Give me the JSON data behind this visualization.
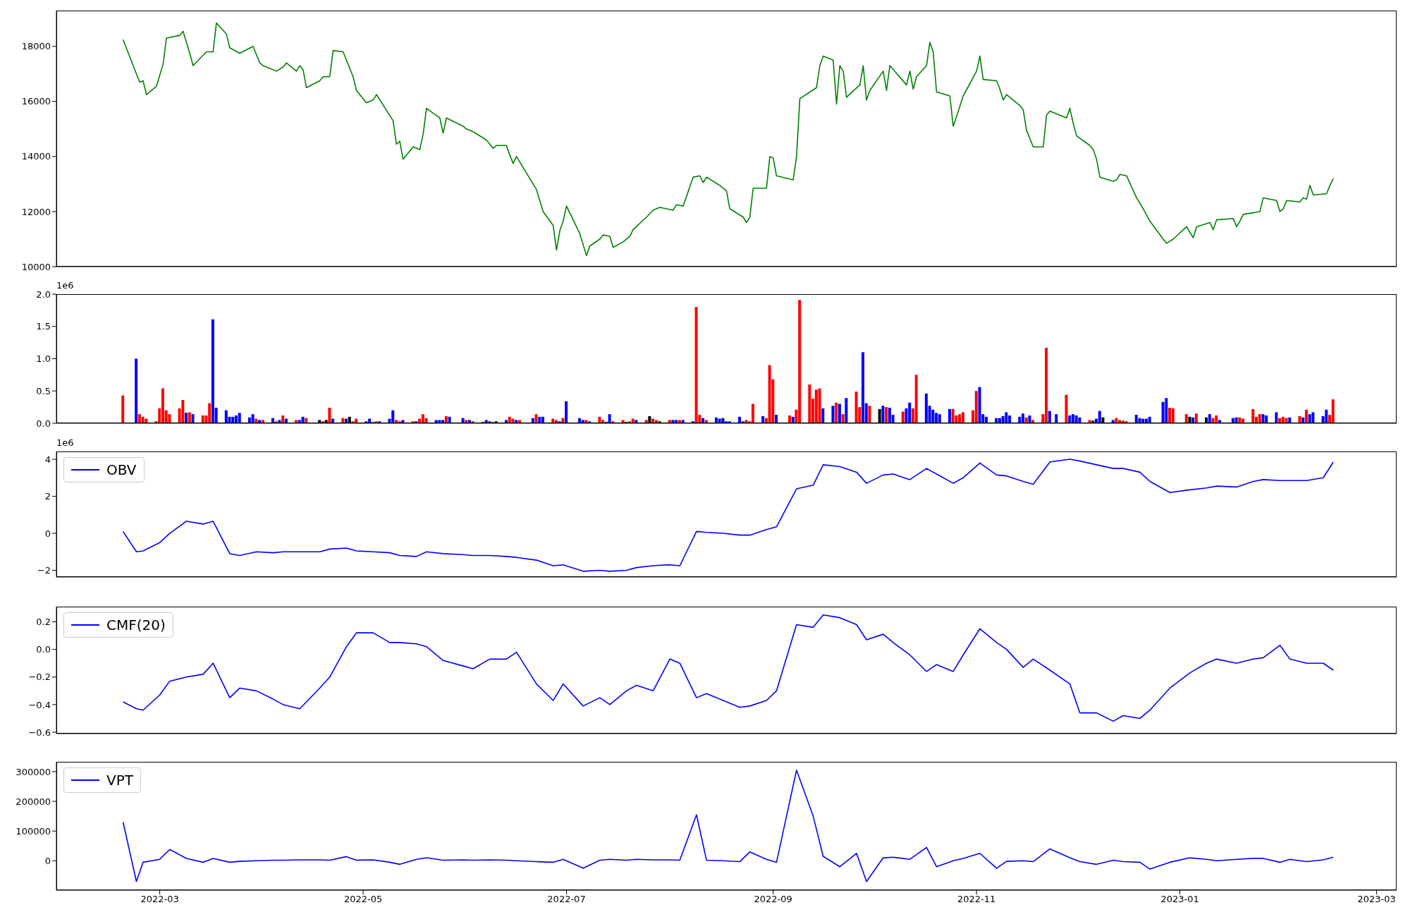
{
  "chart_data": [
    {
      "type": "line",
      "x": [
        "2022-02-18",
        "2022-02-22",
        "2022-02-23",
        "2022-02-24",
        "2022-02-25",
        "2022-02-28",
        "2022-03-02",
        "2022-03-03",
        "2022-03-07",
        "2022-03-08",
        "2022-03-10",
        "2022-03-11",
        "2022-03-15",
        "2022-03-17",
        "2022-03-18",
        "2022-03-21",
        "2022-03-22",
        "2022-03-25",
        "2022-03-29",
        "2022-03-31",
        "2022-04-01",
        "2022-04-05",
        "2022-04-07",
        "2022-04-08",
        "2022-04-11",
        "2022-04-12",
        "2022-04-13",
        "2022-04-14",
        "2022-04-18",
        "2022-04-19",
        "2022-04-21",
        "2022-04-22",
        "2022-04-25",
        "2022-04-26",
        "2022-04-28",
        "2022-04-29",
        "2022-05-02",
        "2022-05-04",
        "2022-05-05",
        "2022-05-10",
        "2022-05-11",
        "2022-05-12",
        "2022-05-13",
        "2022-05-16",
        "2022-05-18",
        "2022-05-19",
        "2022-05-20",
        "2022-05-24",
        "2022-05-25",
        "2022-05-26",
        "2022-05-31",
        "2022-06-01",
        "2022-06-03",
        "2022-06-07",
        "2022-06-09",
        "2022-06-10",
        "2022-06-13",
        "2022-06-14",
        "2022-06-15",
        "2022-06-16",
        "2022-06-17",
        "2022-06-22",
        "2022-06-24",
        "2022-06-27",
        "2022-06-28",
        "2022-06-29",
        "2022-06-30",
        "2022-07-01",
        "2022-07-05",
        "2022-07-07",
        "2022-07-08",
        "2022-07-11",
        "2022-07-12",
        "2022-07-14",
        "2022-07-15",
        "2022-07-18",
        "2022-07-20",
        "2022-07-21",
        "2022-07-25",
        "2022-07-27",
        "2022-07-29",
        "2022-08-02",
        "2022-08-03",
        "2022-08-05",
        "2022-08-08",
        "2022-08-10",
        "2022-08-11",
        "2022-08-12",
        "2022-08-16",
        "2022-08-18",
        "2022-08-19",
        "2022-08-23",
        "2022-08-24",
        "2022-08-25",
        "2022-08-26",
        "2022-08-30",
        "2022-08-31",
        "2022-09-01",
        "2022-09-02",
        "2022-09-07",
        "2022-09-08",
        "2022-09-09",
        "2022-09-14",
        "2022-09-15",
        "2022-09-16",
        "2022-09-19",
        "2022-09-20",
        "2022-09-21",
        "2022-09-22",
        "2022-09-23",
        "2022-09-27",
        "2022-09-28",
        "2022-09-29",
        "2022-09-30",
        "2022-10-04",
        "2022-10-05",
        "2022-10-06",
        "2022-10-11",
        "2022-10-12",
        "2022-10-13",
        "2022-10-14",
        "2022-10-17",
        "2022-10-18",
        "2022-10-19",
        "2022-10-20",
        "2022-10-24",
        "2022-10-25",
        "2022-10-26",
        "2022-10-28",
        "2022-11-01",
        "2022-11-02",
        "2022-11-03",
        "2022-11-07",
        "2022-11-08",
        "2022-11-09",
        "2022-11-10",
        "2022-11-14",
        "2022-11-15",
        "2022-11-16",
        "2022-11-18",
        "2022-11-21",
        "2022-11-22",
        "2022-11-23",
        "2022-11-28",
        "2022-11-29",
        "2022-11-30",
        "2022-12-01",
        "2022-12-05",
        "2022-12-06",
        "2022-12-07",
        "2022-12-08",
        "2022-12-12",
        "2022-12-13",
        "2022-12-14",
        "2022-12-16",
        "2022-12-19",
        "2022-12-21",
        "2022-12-23",
        "2022-12-27",
        "2022-12-28",
        "2022-12-30",
        "2023-01-03",
        "2023-01-05",
        "2023-01-06",
        "2023-01-10",
        "2023-01-11",
        "2023-01-12",
        "2023-01-17",
        "2023-01-18",
        "2023-01-19",
        "2023-01-20",
        "2023-01-25",
        "2023-01-26",
        "2023-01-30",
        "2023-01-31",
        "2023-02-01",
        "2023-02-02",
        "2023-02-06",
        "2023-02-07",
        "2023-02-08",
        "2023-02-09",
        "2023-02-10",
        "2023-02-14",
        "2023-02-15",
        "2023-02-16"
      ],
      "series": [
        {
          "color": "#008000",
          "values": [
            18250,
            17000,
            16700,
            16750,
            16250,
            16550,
            17350,
            18300,
            18400,
            18550,
            17750,
            17300,
            17800,
            17800,
            18850,
            18450,
            17950,
            17750,
            18000,
            17400,
            17300,
            17100,
            17250,
            17400,
            17100,
            17300,
            17150,
            16500,
            16750,
            16900,
            16900,
            17850,
            17800,
            17500,
            16900,
            16400,
            15950,
            16050,
            16250,
            15300,
            14450,
            14550,
            13900,
            14350,
            14250,
            14800,
            15750,
            15400,
            14850,
            15400,
            15100,
            15000,
            14900,
            14600,
            14300,
            14400,
            14400,
            14050,
            13750,
            14000,
            13800,
            12800,
            12000,
            11500,
            10600,
            11300,
            11650,
            12200,
            11200,
            10400,
            10750,
            11000,
            11150,
            11100,
            10700,
            10900,
            11100,
            11350,
            11800,
            12050,
            12150,
            12050,
            12250,
            12200,
            13250,
            13300,
            13050,
            13250,
            12950,
            12750,
            12100,
            11800,
            11600,
            11800,
            12850,
            12850,
            14000,
            13950,
            13300,
            13150,
            14000,
            16100,
            16500,
            17300,
            17650,
            17500,
            15900,
            17300,
            17100,
            16150,
            16600,
            17300,
            16050,
            16400,
            17100,
            16400,
            17300,
            16600,
            17100,
            16450,
            16900,
            17300,
            18150,
            17800,
            16350,
            16200,
            15100,
            15450,
            16200,
            17100,
            17650,
            16800,
            16750,
            16450,
            16050,
            16250,
            15850,
            15700,
            14950,
            14350,
            14350,
            15500,
            15650,
            15400,
            15750,
            15200,
            14750,
            14400,
            14250,
            13900,
            13250,
            13100,
            13150,
            13350,
            13300,
            12500,
            12100,
            11650,
            11000,
            10850,
            11000,
            11450,
            11050,
            11450,
            11600,
            11350,
            11700,
            11750,
            11450,
            11650,
            11900,
            12000,
            12500,
            12400,
            12000,
            12100,
            12400,
            12350,
            12500,
            12450,
            12950,
            12600,
            12650,
            12950,
            13200
          ]
        }
      ],
      "xlim": [
        "2022-01-29",
        "2023-03-07"
      ],
      "ylim": [
        10000,
        19300
      ],
      "yticks": [
        10000,
        12000,
        14000,
        16000,
        18000
      ],
      "tick_labels": "y"
    },
    {
      "type": "bar",
      "x": [
        "2022-02-18",
        "2022-02-22",
        "2022-02-23",
        "2022-02-24",
        "2022-02-25",
        "2022-02-28",
        "2022-03-01",
        "2022-03-02",
        "2022-03-03",
        "2022-03-04",
        "2022-03-07",
        "2022-03-08",
        "2022-03-09",
        "2022-03-10",
        "2022-03-11",
        "2022-03-14",
        "2022-03-15",
        "2022-03-16",
        "2022-03-17",
        "2022-03-18",
        "2022-03-21",
        "2022-03-22",
        "2022-03-23",
        "2022-03-24",
        "2022-03-25",
        "2022-03-28",
        "2022-03-29",
        "2022-03-30",
        "2022-03-31",
        "2022-04-01",
        "2022-04-04",
        "2022-04-05",
        "2022-04-06",
        "2022-04-07",
        "2022-04-08",
        "2022-04-11",
        "2022-04-12",
        "2022-04-13",
        "2022-04-14",
        "2022-04-18",
        "2022-04-19",
        "2022-04-20",
        "2022-04-21",
        "2022-04-22",
        "2022-04-25",
        "2022-04-26",
        "2022-04-27",
        "2022-04-28",
        "2022-04-29",
        "2022-05-02",
        "2022-05-03",
        "2022-05-04",
        "2022-05-05",
        "2022-05-06",
        "2022-05-09",
        "2022-05-10",
        "2022-05-11",
        "2022-05-12",
        "2022-05-13",
        "2022-05-16",
        "2022-05-17",
        "2022-05-18",
        "2022-05-19",
        "2022-05-20",
        "2022-05-23",
        "2022-05-24",
        "2022-05-25",
        "2022-05-26",
        "2022-05-27",
        "2022-05-31",
        "2022-06-01",
        "2022-06-02",
        "2022-06-03",
        "2022-06-06",
        "2022-06-07",
        "2022-06-08",
        "2022-06-09",
        "2022-06-10",
        "2022-06-13",
        "2022-06-14",
        "2022-06-15",
        "2022-06-16",
        "2022-06-17",
        "2022-06-21",
        "2022-06-22",
        "2022-06-23",
        "2022-06-24",
        "2022-06-27",
        "2022-06-28",
        "2022-06-29",
        "2022-06-30",
        "2022-07-01",
        "2022-07-05",
        "2022-07-06",
        "2022-07-07",
        "2022-07-08",
        "2022-07-11",
        "2022-07-12",
        "2022-07-13",
        "2022-07-14",
        "2022-07-15",
        "2022-07-18",
        "2022-07-19",
        "2022-07-20",
        "2022-07-21",
        "2022-07-22",
        "2022-07-25",
        "2022-07-26",
        "2022-07-27",
        "2022-07-28",
        "2022-07-29",
        "2022-08-01",
        "2022-08-02",
        "2022-08-03",
        "2022-08-04",
        "2022-08-05",
        "2022-08-08",
        "2022-08-09",
        "2022-08-10",
        "2022-08-11",
        "2022-08-12",
        "2022-08-15",
        "2022-08-16",
        "2022-08-17",
        "2022-08-18",
        "2022-08-19",
        "2022-08-22",
        "2022-08-23",
        "2022-08-24",
        "2022-08-25",
        "2022-08-26",
        "2022-08-29",
        "2022-08-30",
        "2022-08-31",
        "2022-09-01",
        "2022-09-02",
        "2022-09-06",
        "2022-09-07",
        "2022-09-08",
        "2022-09-09",
        "2022-09-12",
        "2022-09-13",
        "2022-09-14",
        "2022-09-15",
        "2022-09-16",
        "2022-09-19",
        "2022-09-20",
        "2022-09-21",
        "2022-09-22",
        "2022-09-23",
        "2022-09-26",
        "2022-09-27",
        "2022-09-28",
        "2022-09-29",
        "2022-09-30",
        "2022-10-03",
        "2022-10-04",
        "2022-10-05",
        "2022-10-06",
        "2022-10-07",
        "2022-10-10",
        "2022-10-11",
        "2022-10-12",
        "2022-10-13",
        "2022-10-14",
        "2022-10-17",
        "2022-10-18",
        "2022-10-19",
        "2022-10-20",
        "2022-10-21",
        "2022-10-24",
        "2022-10-25",
        "2022-10-26",
        "2022-10-27",
        "2022-10-28",
        "2022-10-31",
        "2022-11-01",
        "2022-11-02",
        "2022-11-03",
        "2022-11-04",
        "2022-11-07",
        "2022-11-08",
        "2022-11-09",
        "2022-11-10",
        "2022-11-11",
        "2022-11-14",
        "2022-11-15",
        "2022-11-16",
        "2022-11-17",
        "2022-11-18",
        "2022-11-21",
        "2022-11-22",
        "2022-11-23",
        "2022-11-25",
        "2022-11-28",
        "2022-11-29",
        "2022-11-30",
        "2022-12-01",
        "2022-12-02",
        "2022-12-05",
        "2022-12-06",
        "2022-12-07",
        "2022-12-08",
        "2022-12-09",
        "2022-12-12",
        "2022-12-13",
        "2022-12-14",
        "2022-12-15",
        "2022-12-16",
        "2022-12-19",
        "2022-12-20",
        "2022-12-21",
        "2022-12-22",
        "2022-12-23",
        "2022-12-27",
        "2022-12-28",
        "2022-12-29",
        "2022-12-30",
        "2023-01-03",
        "2023-01-04",
        "2023-01-05",
        "2023-01-06",
        "2023-01-09",
        "2023-01-10",
        "2023-01-11",
        "2023-01-12",
        "2023-01-13",
        "2023-01-17",
        "2023-01-18",
        "2023-01-19",
        "2023-01-20",
        "2023-01-23",
        "2023-01-24",
        "2023-01-25",
        "2023-01-26",
        "2023-01-27",
        "2023-01-30",
        "2023-01-31",
        "2023-02-01",
        "2023-02-02",
        "2023-02-03",
        "2023-02-06",
        "2023-02-07",
        "2023-02-08",
        "2023-02-09",
        "2023-02-10",
        "2023-02-13",
        "2023-02-14",
        "2023-02-15",
        "2023-02-16"
      ],
      "values": [
        0.43,
        1.0,
        0.14,
        0.1,
        0.07,
        0.03,
        0.23,
        0.54,
        0.2,
        0.14,
        0.23,
        0.36,
        0.16,
        0.17,
        0.14,
        0.12,
        0.12,
        0.31,
        1.61,
        0.24,
        0.2,
        0.1,
        0.1,
        0.12,
        0.16,
        0.09,
        0.14,
        0.07,
        0.05,
        0.05,
        0.08,
        0.03,
        0.05,
        0.12,
        0.07,
        0.05,
        0.05,
        0.1,
        0.08,
        0.05,
        0.03,
        0.05,
        0.24,
        0.07,
        0.08,
        0.07,
        0.1,
        0.03,
        0.07,
        0.03,
        0.07,
        0.02,
        0.03,
        0.03,
        0.07,
        0.2,
        0.05,
        0.03,
        0.05,
        0.03,
        0.03,
        0.07,
        0.14,
        0.08,
        0.05,
        0.05,
        0.05,
        0.11,
        0.1,
        0.08,
        0.05,
        0.05,
        0.03,
        0.02,
        0.05,
        0.03,
        0.02,
        0.03,
        0.05,
        0.1,
        0.07,
        0.05,
        0.05,
        0.08,
        0.14,
        0.1,
        0.1,
        0.07,
        0.05,
        0.03,
        0.08,
        0.34,
        0.08,
        0.05,
        0.05,
        0.03,
        0.1,
        0.05,
        0.02,
        0.14,
        0.03,
        0.05,
        0.02,
        0.03,
        0.07,
        0.05,
        0.05,
        0.11,
        0.07,
        0.05,
        0.03,
        0.05,
        0.05,
        0.05,
        0.05,
        0.05,
        0.03,
        1.8,
        0.13,
        0.08,
        0.05,
        0.09,
        0.07,
        0.08,
        0.03,
        0.03,
        0.1,
        0.03,
        0.05,
        0.03,
        0.3,
        0.11,
        0.08,
        0.9,
        0.68,
        0.13,
        0.12,
        0.1,
        0.21,
        1.91,
        0.6,
        0.38,
        0.52,
        0.54,
        0.23,
        0.27,
        0.32,
        0.3,
        0.14,
        0.39,
        0.49,
        0.25,
        1.1,
        0.31,
        0.27,
        0.22,
        0.27,
        0.25,
        0.24,
        0.13,
        0.18,
        0.23,
        0.32,
        0.23,
        0.75,
        0.46,
        0.27,
        0.21,
        0.16,
        0.14,
        0.22,
        0.22,
        0.12,
        0.14,
        0.17,
        0.2,
        0.5,
        0.56,
        0.14,
        0.1,
        0.08,
        0.08,
        0.11,
        0.17,
        0.12,
        0.1,
        0.15,
        0.09,
        0.12,
        0.05,
        0.14,
        1.17,
        0.19,
        0.14,
        0.44,
        0.12,
        0.14,
        0.12,
        0.09,
        0.05,
        0.04,
        0.07,
        0.19,
        0.09,
        0.05,
        0.08,
        0.05,
        0.04,
        0.03,
        0.13,
        0.08,
        0.07,
        0.07,
        0.1,
        0.33,
        0.39,
        0.24,
        0.23,
        0.14,
        0.1,
        0.09,
        0.15,
        0.09,
        0.14,
        0.08,
        0.12,
        0.05,
        0.08,
        0.09,
        0.09,
        0.07,
        0.22,
        0.1,
        0.14,
        0.14,
        0.12,
        0.17,
        0.08,
        0.1,
        0.08,
        0.09,
        0.11,
        0.09,
        0.21,
        0.14,
        0.17,
        0.11,
        0.21,
        0.13,
        0.37
      ],
      "colors": [
        "#ff0000",
        "#0000ff",
        "#ff0000",
        "#ff0000",
        "#ff0000",
        "#ff0000",
        "#ff0000",
        "#ff0000",
        "#ff0000",
        "#ff0000",
        "#ff0000",
        "#ff0000",
        "#0000ff",
        "#ff0000",
        "#0000ff",
        "#ff0000",
        "#ff0000",
        "#ff0000",
        "#0000ff",
        "#0000ff",
        "#0000ff",
        "#0000ff",
        "#0000ff",
        "#0000ff",
        "#0000ff",
        "#0000ff",
        "#0000ff",
        "#ff0000",
        "#0000ff",
        "#ff0000",
        "#0000ff",
        "#ff0000",
        "#0000ff",
        "#ff0000",
        "#0000ff",
        "#ff0000",
        "#0000ff",
        "#0000ff",
        "#ff0000",
        "#000000",
        "#ff0000",
        "#000000",
        "#ff0000",
        "#0000ff",
        "#ff0000",
        "#0000ff",
        "#000000",
        "#ff0000",
        "#ff0000",
        "#0000ff",
        "#0000ff",
        "#ff0000",
        "#ff0000",
        "#0000ff",
        "#0000ff",
        "#0000ff",
        "#ff0000",
        "#ff0000",
        "#0000ff",
        "#ff0000",
        "#0000ff",
        "#ff0000",
        "#ff0000",
        "#ff0000",
        "#0000ff",
        "#0000ff",
        "#0000ff",
        "#ff0000",
        "#0000ff",
        "#0000ff",
        "#ff0000",
        "#0000ff",
        "#ff0000",
        "#0000ff",
        "#0000ff",
        "#0000ff",
        "#ff0000",
        "#000000",
        "#0000ff",
        "#ff0000",
        "#ff0000",
        "#0000ff",
        "#ff0000",
        "#0000ff",
        "#ff0000",
        "#0000ff",
        "#0000ff",
        "#ff0000",
        "#ff0000",
        "#0000ff",
        "#ff0000",
        "#0000ff",
        "#0000ff",
        "#0000ff",
        "#ff0000",
        "#0000ff",
        "#ff0000",
        "#ff0000",
        "#000000",
        "#0000ff",
        "#ff0000",
        "#ff0000",
        "#000000",
        "#ff0000",
        "#ff0000",
        "#0000ff",
        "#ff0000",
        "#000000",
        "#ff0000",
        "#ff0000",
        "#000000",
        "#ff0000",
        "#0000ff",
        "#0000ff",
        "#ff0000",
        "#0000ff",
        "#0000ff",
        "#ff0000",
        "#ff0000",
        "#0000ff",
        "#ff0000",
        "#0000ff",
        "#0000ff",
        "#0000ff",
        "#0000ff",
        "#0000ff",
        "#0000ff",
        "#0000ff",
        "#ff0000",
        "#ff0000",
        "#ff0000",
        "#0000ff",
        "#ff0000",
        "#ff0000",
        "#ff0000",
        "#0000ff",
        "#ff0000",
        "#0000ff",
        "#ff0000",
        "#ff0000",
        "#ff0000",
        "#ff0000",
        "#ff0000",
        "#ff0000",
        "#0000ff",
        "#0000ff",
        "#ff0000",
        "#0000ff",
        "#ff0000",
        "#0000ff",
        "#ff0000",
        "#ff0000",
        "#0000ff",
        "#0000ff",
        "#ff0000",
        "#000000",
        "#0000ff",
        "#ff0000",
        "#0000ff",
        "#0000ff",
        "#ff0000",
        "#0000ff",
        "#0000ff",
        "#ff0000",
        "#ff0000",
        "#0000ff",
        "#0000ff",
        "#0000ff",
        "#0000ff",
        "#0000ff",
        "#0000ff",
        "#ff0000",
        "#ff0000",
        "#ff0000",
        "#ff0000",
        "#ff0000",
        "#ff0000",
        "#0000ff",
        "#0000ff",
        "#0000ff",
        "#0000ff",
        "#0000ff",
        "#0000ff",
        "#0000ff",
        "#0000ff",
        "#0000ff",
        "#0000ff",
        "#ff0000",
        "#0000ff",
        "#ff0000",
        "#ff0000",
        "#ff0000",
        "#0000ff",
        "#0000ff",
        "#ff0000",
        "#0000ff",
        "#0000ff",
        "#0000ff",
        "#0000ff",
        "#ff0000",
        "#000000",
        "#0000ff",
        "#0000ff",
        "#000000",
        "#0000ff",
        "#ff0000",
        "#ff0000",
        "#ff0000",
        "#ff0000",
        "#0000ff",
        "#0000ff",
        "#0000ff",
        "#0000ff",
        "#0000ff",
        "#0000ff",
        "#0000ff",
        "#ff0000",
        "#ff0000",
        "#ff0000",
        "#000000",
        "#0000ff",
        "#ff0000",
        "#000000",
        "#0000ff",
        "#ff0000",
        "#ff0000",
        "#0000ff",
        "#0000ff",
        "#0000ff",
        "#ff0000",
        "#ff0000",
        "#ff0000",
        "#ff0000",
        "#ff0000",
        "#0000ff",
        "#0000ff",
        "#0000ff",
        "#ff0000",
        "#ff0000",
        "#ff0000",
        "#0000ff",
        "#ff0000",
        "#0000ff",
        "#ff0000",
        "#0000ff",
        "#0000ff",
        "#0000ff",
        "#0000ff",
        "#ff0000",
        "#ff0000"
      ],
      "xlim": [
        "2022-01-29",
        "2023-03-07"
      ],
      "ylim": [
        0,
        2.0
      ],
      "yticks": [
        {
          "value": 0,
          "label": "0.0"
        },
        {
          "value": 0.5,
          "label": "0.5"
        },
        {
          "value": 1,
          "label": "1.0"
        },
        {
          "value": 1.5,
          "label": "1.5"
        },
        {
          "value": 2,
          "label": "2.0"
        }
      ],
      "annotations": [
        "1e6"
      ],
      "tick_labels": "y"
    },
    {
      "type": "line",
      "x": [
        "2022-02-18",
        "2022-02-22",
        "2022-02-24",
        "2022-03-01",
        "2022-03-04",
        "2022-03-09",
        "2022-03-14",
        "2022-03-17",
        "2022-03-22",
        "2022-03-25",
        "2022-03-30",
        "2022-04-04",
        "2022-04-07",
        "2022-04-12",
        "2022-04-18",
        "2022-04-21",
        "2022-04-26",
        "2022-04-29",
        "2022-05-04",
        "2022-05-09",
        "2022-05-12",
        "2022-05-17",
        "2022-05-20",
        "2022-05-25",
        "2022-05-31",
        "2022-06-03",
        "2022-06-08",
        "2022-06-13",
        "2022-06-16",
        "2022-06-22",
        "2022-06-27",
        "2022-06-30",
        "2022-07-06",
        "2022-07-11",
        "2022-07-14",
        "2022-07-19",
        "2022-07-22",
        "2022-07-27",
        "2022-08-01",
        "2022-08-04",
        "2022-08-09",
        "2022-08-12",
        "2022-08-17",
        "2022-08-22",
        "2022-08-25",
        "2022-08-30",
        "2022-09-02",
        "2022-09-08",
        "2022-09-13",
        "2022-09-16",
        "2022-09-21",
        "2022-09-26",
        "2022-09-29",
        "2022-10-04",
        "2022-10-07",
        "2022-10-12",
        "2022-10-17",
        "2022-10-20",
        "2022-10-25",
        "2022-10-28",
        "2022-11-02",
        "2022-11-07",
        "2022-11-10",
        "2022-11-15",
        "2022-11-18",
        "2022-11-23",
        "2022-11-29",
        "2022-12-02",
        "2022-12-07",
        "2022-12-12",
        "2022-12-15",
        "2022-12-20",
        "2022-12-23",
        "2022-12-29",
        "2023-01-04",
        "2023-01-09",
        "2023-01-12",
        "2023-01-18",
        "2023-01-23",
        "2023-01-26",
        "2023-01-31",
        "2023-02-03",
        "2023-02-08",
        "2023-02-13",
        "2023-02-16"
      ],
      "series": [
        {
          "name": "OBV",
          "color": "#0000ff",
          "values": [
            0.1,
            -1.0,
            -0.95,
            -0.5,
            0.0,
            0.65,
            0.5,
            0.65,
            -1.1,
            -1.2,
            -1.0,
            -1.05,
            -1.0,
            -1.0,
            -1.0,
            -0.85,
            -0.8,
            -0.95,
            -1.0,
            -1.05,
            -1.2,
            -1.25,
            -1.0,
            -1.1,
            -1.15,
            -1.2,
            -1.2,
            -1.25,
            -1.3,
            -1.45,
            -1.75,
            -1.7,
            -2.05,
            -2.0,
            -2.05,
            -2.0,
            -1.85,
            -1.75,
            -1.7,
            -1.75,
            0.1,
            0.05,
            0.0,
            -0.1,
            -0.1,
            0.2,
            0.35,
            2.4,
            2.6,
            3.7,
            3.6,
            3.3,
            2.7,
            3.15,
            3.2,
            2.9,
            3.5,
            3.2,
            2.7,
            3.0,
            3.8,
            3.15,
            3.1,
            2.8,
            2.65,
            3.85,
            4.0,
            3.9,
            3.7,
            3.5,
            3.5,
            3.3,
            2.8,
            2.2,
            2.35,
            2.45,
            2.55,
            2.5,
            2.8,
            2.9,
            2.85,
            2.85,
            2.85,
            3.0,
            3.85
          ]
        }
      ],
      "xlim": [
        "2022-01-29",
        "2023-03-07"
      ],
      "ylim": [
        -2.36,
        4.42
      ],
      "yticks": [
        {
          "value": -2,
          "label": "−2"
        },
        0,
        2,
        4
      ],
      "legend": "top left",
      "annotations": [
        "1e6"
      ],
      "tick_labels": "y"
    },
    {
      "type": "line",
      "x": [
        "2022-02-18",
        "2022-02-22",
        "2022-02-24",
        "2022-03-01",
        "2022-03-04",
        "2022-03-09",
        "2022-03-14",
        "2022-03-17",
        "2022-03-22",
        "2022-03-25",
        "2022-03-30",
        "2022-04-04",
        "2022-04-07",
        "2022-04-12",
        "2022-04-18",
        "2022-04-21",
        "2022-04-26",
        "2022-04-29",
        "2022-05-04",
        "2022-05-09",
        "2022-05-12",
        "2022-05-17",
        "2022-05-20",
        "2022-05-25",
        "2022-05-31",
        "2022-06-03",
        "2022-06-08",
        "2022-06-13",
        "2022-06-16",
        "2022-06-22",
        "2022-06-27",
        "2022-06-30",
        "2022-07-06",
        "2022-07-11",
        "2022-07-14",
        "2022-07-19",
        "2022-07-22",
        "2022-07-27",
        "2022-08-01",
        "2022-08-04",
        "2022-08-09",
        "2022-08-12",
        "2022-08-17",
        "2022-08-22",
        "2022-08-25",
        "2022-08-30",
        "2022-09-02",
        "2022-09-08",
        "2022-09-13",
        "2022-09-16",
        "2022-09-21",
        "2022-09-26",
        "2022-09-29",
        "2022-10-04",
        "2022-10-07",
        "2022-10-12",
        "2022-10-17",
        "2022-10-20",
        "2022-10-25",
        "2022-10-28",
        "2022-11-02",
        "2022-11-07",
        "2022-11-10",
        "2022-11-15",
        "2022-11-18",
        "2022-11-23",
        "2022-11-29",
        "2022-12-02",
        "2022-12-07",
        "2022-12-12",
        "2022-12-15",
        "2022-12-20",
        "2022-12-23",
        "2022-12-29",
        "2023-01-04",
        "2023-01-09",
        "2023-01-12",
        "2023-01-18",
        "2023-01-23",
        "2023-01-26",
        "2023-01-31",
        "2023-02-03",
        "2023-02-08",
        "2023-02-13",
        "2023-02-16"
      ],
      "series": [
        {
          "name": "CMF(20)",
          "color": "#0000ff",
          "values": [
            -0.38,
            -0.43,
            -0.44,
            -0.33,
            -0.23,
            -0.2,
            -0.18,
            -0.1,
            -0.35,
            -0.28,
            -0.3,
            -0.36,
            -0.4,
            -0.43,
            -0.28,
            -0.2,
            0.02,
            0.12,
            0.12,
            0.05,
            0.05,
            0.04,
            0.02,
            -0.08,
            -0.12,
            -0.14,
            -0.07,
            -0.07,
            -0.02,
            -0.25,
            -0.37,
            -0.25,
            -0.41,
            -0.35,
            -0.4,
            -0.3,
            -0.26,
            -0.3,
            -0.07,
            -0.1,
            -0.35,
            -0.32,
            -0.37,
            -0.42,
            -0.41,
            -0.37,
            -0.3,
            0.18,
            0.16,
            0.25,
            0.23,
            0.18,
            0.07,
            0.11,
            0.05,
            -0.04,
            -0.16,
            -0.11,
            -0.16,
            -0.04,
            0.15,
            0.05,
            0.0,
            -0.13,
            -0.07,
            -0.15,
            -0.25,
            -0.46,
            -0.46,
            -0.52,
            -0.48,
            -0.5,
            -0.44,
            -0.28,
            -0.17,
            -0.1,
            -0.07,
            -0.1,
            -0.07,
            -0.06,
            0.03,
            -0.07,
            -0.1,
            -0.1,
            -0.15
          ]
        }
      ],
      "xlim": [
        "2022-01-29",
        "2023-03-07"
      ],
      "ylim": [
        -0.61,
        0.31
      ],
      "yticks": [
        {
          "value": -0.6,
          "label": "−0.6"
        },
        {
          "value": -0.4,
          "label": "−0.4"
        },
        {
          "value": -0.2,
          "label": "−0.2"
        },
        {
          "value": 0,
          "label": "0.0"
        },
        0.2
      ],
      "legend": "top left",
      "tick_labels": "y"
    },
    {
      "type": "line",
      "x": [
        "2022-02-18",
        "2022-02-22",
        "2022-02-24",
        "2022-03-01",
        "2022-03-04",
        "2022-03-09",
        "2022-03-14",
        "2022-03-17",
        "2022-03-22",
        "2022-03-25",
        "2022-03-30",
        "2022-04-04",
        "2022-04-07",
        "2022-04-12",
        "2022-04-18",
        "2022-04-21",
        "2022-04-26",
        "2022-04-29",
        "2022-05-04",
        "2022-05-09",
        "2022-05-12",
        "2022-05-17",
        "2022-05-20",
        "2022-05-25",
        "2022-05-31",
        "2022-06-03",
        "2022-06-08",
        "2022-06-13",
        "2022-06-16",
        "2022-06-22",
        "2022-06-27",
        "2022-06-30",
        "2022-07-06",
        "2022-07-11",
        "2022-07-14",
        "2022-07-19",
        "2022-07-22",
        "2022-07-27",
        "2022-08-01",
        "2022-08-04",
        "2022-08-09",
        "2022-08-12",
        "2022-08-17",
        "2022-08-22",
        "2022-08-25",
        "2022-08-30",
        "2022-09-02",
        "2022-09-08",
        "2022-09-13",
        "2022-09-16",
        "2022-09-21",
        "2022-09-26",
        "2022-09-29",
        "2022-10-04",
        "2022-10-07",
        "2022-10-12",
        "2022-10-17",
        "2022-10-20",
        "2022-10-25",
        "2022-10-28",
        "2022-11-02",
        "2022-11-07",
        "2022-11-10",
        "2022-11-15",
        "2022-11-18",
        "2022-11-23",
        "2022-11-29",
        "2022-12-02",
        "2022-12-07",
        "2022-12-12",
        "2022-12-15",
        "2022-12-20",
        "2022-12-23",
        "2022-12-29",
        "2023-01-04",
        "2023-01-09",
        "2023-01-12",
        "2023-01-18",
        "2023-01-23",
        "2023-01-26",
        "2023-01-31",
        "2023-02-03",
        "2023-02-08",
        "2023-02-13",
        "2023-02-16"
      ],
      "series": [
        {
          "name": "VPT",
          "color": "#0000ff",
          "values": [
            130000,
            -70000,
            -5000,
            5000,
            38000,
            8000,
            -5000,
            8000,
            -5000,
            -2000,
            0,
            2000,
            2000,
            3000,
            3000,
            2000,
            14000,
            2000,
            3000,
            -5000,
            -12000,
            5000,
            10000,
            2000,
            3000,
            2000,
            3000,
            2000,
            0,
            -3000,
            -5000,
            5000,
            -25000,
            2000,
            5000,
            2000,
            5000,
            3000,
            3000,
            2000,
            155000,
            2000,
            0,
            -3000,
            30000,
            5000,
            -5000,
            305000,
            150000,
            15000,
            -20000,
            25000,
            -70000,
            10000,
            12000,
            5000,
            45000,
            -20000,
            0,
            8000,
            25000,
            -25000,
            -2000,
            0,
            -3000,
            40000,
            10000,
            -3000,
            -12000,
            2000,
            -3000,
            -5000,
            -28000,
            -5000,
            10000,
            5000,
            0,
            5000,
            8000,
            8000,
            -5000,
            5000,
            -3000,
            3000,
            12000
          ]
        }
      ],
      "xlim": [
        "2022-01-29",
        "2023-03-07"
      ],
      "xticks": [
        {
          "value": "2022-03-01",
          "label": "2022-03"
        },
        {
          "value": "2022-05-01",
          "label": "2022-05"
        },
        {
          "value": "2022-07-01",
          "label": "2022-07"
        },
        {
          "value": "2022-09-01",
          "label": "2022-09"
        },
        {
          "value": "2022-11-01",
          "label": "2022-11"
        },
        {
          "value": "2023-01-01",
          "label": "2023-01"
        },
        {
          "value": "2023-03-01",
          "label": "2023-03"
        }
      ],
      "ylim": [
        -99000,
        333000
      ],
      "yticks": [
        0,
        100000,
        200000,
        300000
      ],
      "legend": "top left"
    }
  ]
}
